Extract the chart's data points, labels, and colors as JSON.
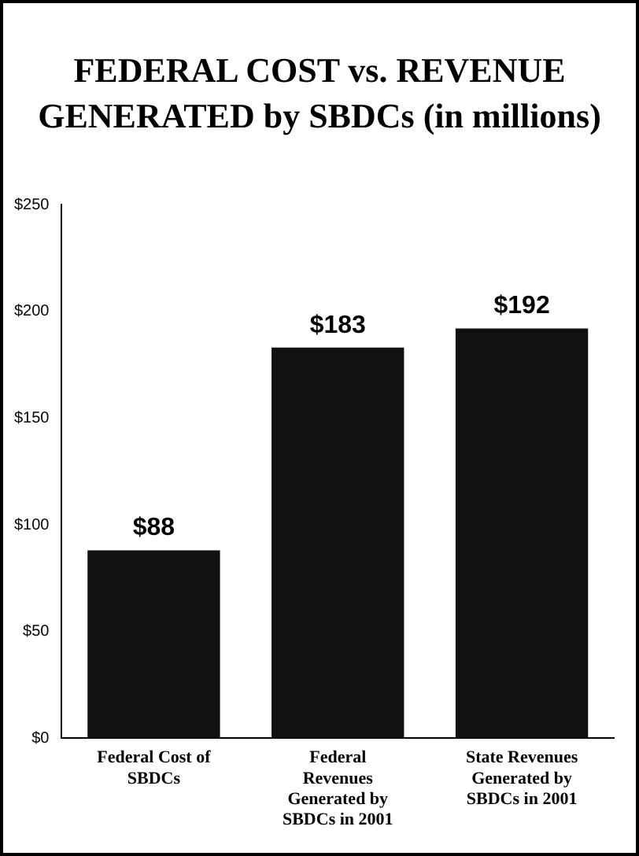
{
  "chart_data": {
    "type": "bar",
    "title": "FEDERAL COST vs. REVENUE GENERATED by SBDCs (in millions)",
    "categories": [
      "Federal Cost of SBDCs",
      "Federal Revenues Generated by SBDCs in 2001",
      "State Revenues Generated by SBDCs in 2001"
    ],
    "values": [
      88,
      183,
      192
    ],
    "color": "#111111",
    "value_labels": [
      "$88",
      "$183",
      "$192"
    ],
    "ylim": [
      0,
      250
    ],
    "yticks": [
      {
        "value": 0,
        "label": "$0"
      },
      {
        "value": 50,
        "label": "$50"
      },
      {
        "value": 100,
        "label": "$100"
      },
      {
        "value": 150,
        "label": "$150"
      },
      {
        "value": 200,
        "label": "$200"
      },
      {
        "value": 250,
        "label": "$250"
      }
    ],
    "grid": false,
    "legend": false
  }
}
